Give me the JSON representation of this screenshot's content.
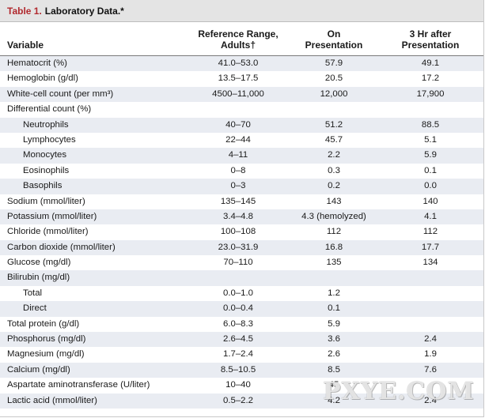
{
  "title": {
    "number": "Table 1.",
    "text": "Laboratory Data.*"
  },
  "headers": {
    "variable": "Variable",
    "reference_line1": "Reference Range,",
    "reference_line2": "Adults†",
    "on_line1": "On",
    "on_line2": "Presentation",
    "after_line1": "3 Hr after",
    "after_line2": "Presentation"
  },
  "rows": [
    {
      "label": "Hematocrit (%)",
      "ref": "41.0–53.0",
      "on": "57.9",
      "after": "49.1",
      "indent": false
    },
    {
      "label": "Hemoglobin (g/dl)",
      "ref": "13.5–17.5",
      "on": "20.5",
      "after": "17.2",
      "indent": false
    },
    {
      "label": "White-cell count (per mm³)",
      "ref": "4500–11,000",
      "on": "12,000",
      "after": "17,900",
      "indent": false
    },
    {
      "label": "Differential count (%)",
      "ref": "",
      "on": "",
      "after": "",
      "indent": false
    },
    {
      "label": "Neutrophils",
      "ref": "40–70",
      "on": "51.2",
      "after": "88.5",
      "indent": true
    },
    {
      "label": "Lymphocytes",
      "ref": "22–44",
      "on": "45.7",
      "after": "5.1",
      "indent": true
    },
    {
      "label": "Monocytes",
      "ref": "4–11",
      "on": "2.2",
      "after": "5.9",
      "indent": true
    },
    {
      "label": "Eosinophils",
      "ref": "0–8",
      "on": "0.3",
      "after": "0.1",
      "indent": true
    },
    {
      "label": "Basophils",
      "ref": "0–3",
      "on": "0.2",
      "after": "0.0",
      "indent": true
    },
    {
      "label": "Sodium (mmol/liter)",
      "ref": "135–145",
      "on": "143",
      "after": "140",
      "indent": false
    },
    {
      "label": "Potassium (mmol/liter)",
      "ref": "3.4–4.8",
      "on": "4.3 (hemolyzed)",
      "after": "4.1",
      "indent": false
    },
    {
      "label": "Chloride (mmol/liter)",
      "ref": "100–108",
      "on": "112",
      "after": "112",
      "indent": false
    },
    {
      "label": "Carbon dioxide (mmol/liter)",
      "ref": "23.0–31.9",
      "on": "16.8",
      "after": "17.7",
      "indent": false
    },
    {
      "label": "Glucose (mg/dl)",
      "ref": "70–110",
      "on": "135",
      "after": "134",
      "indent": false
    },
    {
      "label": "Bilirubin (mg/dl)",
      "ref": "",
      "on": "",
      "after": "",
      "indent": false
    },
    {
      "label": "Total",
      "ref": "0.0–1.0",
      "on": "1.2",
      "after": "",
      "indent": true
    },
    {
      "label": "Direct",
      "ref": "0.0–0.4",
      "on": "0.1",
      "after": "",
      "indent": true
    },
    {
      "label": "Total protein (g/dl)",
      "ref": "6.0–8.3",
      "on": "5.9",
      "after": "",
      "indent": false
    },
    {
      "label": "Phosphorus (mg/dl)",
      "ref": "2.6–4.5",
      "on": "3.6",
      "after": "2.4",
      "indent": false
    },
    {
      "label": "Magnesium (mg/dl)",
      "ref": "1.7–2.4",
      "on": "2.6",
      "after": "1.9",
      "indent": false
    },
    {
      "label": "Calcium (mg/dl)",
      "ref": "8.5–10.5",
      "on": "8.5",
      "after": "7.6",
      "indent": false
    },
    {
      "label": "Aspartate aminotransferase (U/liter)",
      "ref": "10–40",
      "on": "45",
      "after": "",
      "indent": false
    },
    {
      "label": "Lactic acid (mmol/liter)",
      "ref": "0.5–2.2",
      "on": "4.2",
      "after": "2.4",
      "indent": false
    }
  ],
  "watermark": "PXYE.COM"
}
